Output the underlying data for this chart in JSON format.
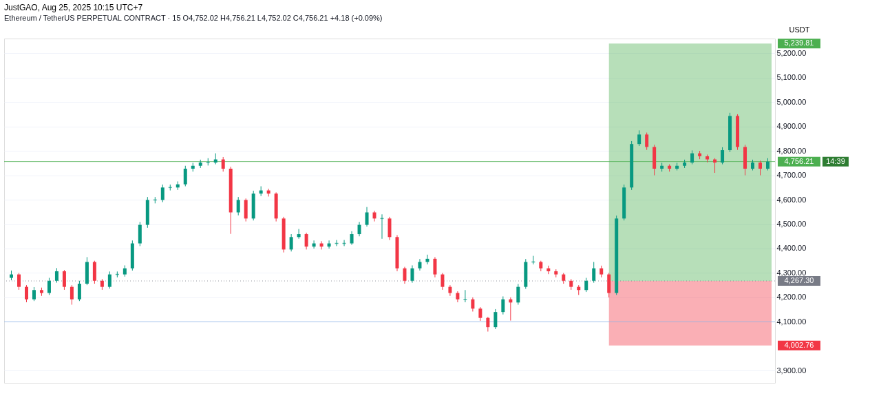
{
  "chart_data": {
    "type": "candlestick",
    "title": "JustGAO, Aug 25, 2025 10:15 UTC+7",
    "subtitle": "Ethereum / TetherUS PERPETUAL CONTRACT · 15  O4,752.02  H4,756.21  L4,752.02  C4,756.21  +4.18 (+0.09%)",
    "ylabel": "USDT",
    "categories": [
      null,
      null,
      null,
      null,
      null,
      null,
      null,
      null,
      null,
      null,
      null,
      null,
      null,
      null,
      null,
      null,
      null,
      null,
      null,
      null,
      null,
      null,
      null,
      null,
      null,
      null,
      null,
      null,
      null,
      null,
      null,
      null,
      null,
      null,
      null,
      null,
      null,
      null,
      null,
      null,
      null,
      null,
      null,
      null,
      null,
      null,
      null,
      null,
      null,
      null,
      null,
      null,
      null,
      null,
      null,
      null,
      null,
      null,
      null,
      null,
      null,
      null,
      null,
      null,
      null,
      null,
      null,
      null,
      null,
      null,
      null,
      null,
      null,
      null,
      null,
      null,
      null,
      null,
      null,
      null,
      null,
      null,
      null,
      null,
      null,
      null,
      null,
      null,
      null,
      null,
      null,
      null,
      null,
      null,
      null,
      null,
      null,
      null,
      null,
      null,
      null
    ],
    "ohlc": [
      [
        4280,
        4310,
        4270,
        4294
      ],
      [
        4294,
        4300,
        4231,
        4243
      ],
      [
        4243,
        4250,
        4180,
        4192
      ],
      [
        4192,
        4242,
        4185,
        4230
      ],
      [
        4230,
        4240,
        4206,
        4218
      ],
      [
        4218,
        4280,
        4210,
        4268
      ],
      [
        4268,
        4320,
        4260,
        4307
      ],
      [
        4307,
        4312,
        4231,
        4243
      ],
      [
        4243,
        4250,
        4170,
        4192
      ],
      [
        4192,
        4268,
        4185,
        4256
      ],
      [
        4256,
        4365,
        4250,
        4345
      ],
      [
        4345,
        4350,
        4256,
        4268
      ],
      [
        4268,
        4275,
        4231,
        4243
      ],
      [
        4243,
        4306,
        4236,
        4294
      ],
      [
        4294,
        4306,
        4282,
        4294
      ],
      [
        4294,
        4331,
        4285,
        4319
      ],
      [
        4319,
        4433,
        4310,
        4421
      ],
      [
        4421,
        4509,
        4410,
        4497
      ],
      [
        4497,
        4611,
        4485,
        4599
      ],
      [
        4599,
        4611,
        4585,
        4599
      ],
      [
        4599,
        4662,
        4590,
        4650
      ],
      [
        4650,
        4662,
        4638,
        4650
      ],
      [
        4650,
        4675,
        4640,
        4663
      ],
      [
        4663,
        4739,
        4655,
        4727
      ],
      [
        4727,
        4751,
        4715,
        4739
      ],
      [
        4739,
        4764,
        4730,
        4752
      ],
      [
        4752,
        4770,
        4740,
        4752
      ],
      [
        4752,
        4790,
        4745,
        4765
      ],
      [
        4765,
        4775,
        4715,
        4727
      ],
      [
        4727,
        4735,
        4460,
        4548
      ],
      [
        4548,
        4611,
        4536,
        4599
      ],
      [
        4599,
        4605,
        4511,
        4523
      ],
      [
        4523,
        4637,
        4515,
        4625
      ],
      [
        4625,
        4655,
        4615,
        4638
      ],
      [
        4638,
        4645,
        4613,
        4625
      ],
      [
        4625,
        4630,
        4511,
        4523
      ],
      [
        4523,
        4530,
        4384,
        4396
      ],
      [
        4396,
        4459,
        4388,
        4447
      ],
      [
        4447,
        4480,
        4440,
        4459
      ],
      [
        4459,
        4465,
        4396,
        4408
      ],
      [
        4408,
        4433,
        4400,
        4421
      ],
      [
        4421,
        4430,
        4396,
        4408
      ],
      [
        4408,
        4433,
        4400,
        4421
      ],
      [
        4421,
        4435,
        4410,
        4421
      ],
      [
        4421,
        4435,
        4410,
        4421
      ],
      [
        4421,
        4471,
        4415,
        4459
      ],
      [
        4459,
        4509,
        4450,
        4497
      ],
      [
        4497,
        4570,
        4490,
        4548
      ],
      [
        4548,
        4555,
        4511,
        4523
      ],
      [
        4523,
        4540,
        4440,
        4523
      ],
      [
        4523,
        4530,
        4435,
        4447
      ],
      [
        4447,
        4455,
        4307,
        4319
      ],
      [
        4319,
        4325,
        4256,
        4268
      ],
      [
        4268,
        4331,
        4260,
        4319
      ],
      [
        4319,
        4357,
        4310,
        4345
      ],
      [
        4345,
        4375,
        4335,
        4358
      ],
      [
        4358,
        4365,
        4282,
        4294
      ],
      [
        4294,
        4300,
        4231,
        4243
      ],
      [
        4243,
        4250,
        4206,
        4218
      ],
      [
        4218,
        4225,
        4180,
        4192
      ],
      [
        4192,
        4230,
        4180,
        4192
      ],
      [
        4192,
        4200,
        4142,
        4154
      ],
      [
        4154,
        4160,
        4104,
        4116
      ],
      [
        4116,
        4120,
        4060,
        4078
      ],
      [
        4078,
        4152,
        4070,
        4140
      ],
      [
        4140,
        4204,
        4130,
        4192
      ],
      [
        4192,
        4200,
        4105,
        4179
      ],
      [
        4179,
        4255,
        4170,
        4243
      ],
      [
        4243,
        4357,
        4235,
        4345
      ],
      [
        4345,
        4370,
        4335,
        4345
      ],
      [
        4345,
        4350,
        4307,
        4319
      ],
      [
        4319,
        4330,
        4295,
        4307
      ],
      [
        4307,
        4315,
        4282,
        4294
      ],
      [
        4294,
        4300,
        4256,
        4268
      ],
      [
        4268,
        4275,
        4231,
        4243
      ],
      [
        4243,
        4250,
        4210,
        4230
      ],
      [
        4230,
        4280,
        4222,
        4268
      ],
      [
        4268,
        4345,
        4260,
        4319
      ],
      [
        4319,
        4330,
        4282,
        4294
      ],
      [
        4294,
        4300,
        4200,
        4218
      ],
      [
        4218,
        4535,
        4210,
        4523
      ],
      [
        4523,
        4662,
        4515,
        4650
      ],
      [
        4650,
        4840,
        4640,
        4828
      ],
      [
        4828,
        4884,
        4820,
        4867
      ],
      [
        4867,
        4875,
        4804,
        4816
      ],
      [
        4816,
        4825,
        4700,
        4727
      ],
      [
        4727,
        4751,
        4715,
        4739
      ],
      [
        4739,
        4745,
        4715,
        4727
      ],
      [
        4727,
        4751,
        4720,
        4739
      ],
      [
        4739,
        4764,
        4730,
        4752
      ],
      [
        4752,
        4802,
        4745,
        4790
      ],
      [
        4790,
        4800,
        4766,
        4778
      ],
      [
        4778,
        4785,
        4753,
        4765
      ],
      [
        4765,
        4770,
        4710,
        4752
      ],
      [
        4752,
        4815,
        4745,
        4803
      ],
      [
        4803,
        4956,
        4795,
        4943
      ],
      [
        4943,
        4950,
        4804,
        4816
      ],
      [
        4816,
        4825,
        4700,
        4727
      ],
      [
        4727,
        4764,
        4720,
        4752
      ],
      [
        4752,
        4760,
        4700,
        4727
      ],
      [
        4727,
        4770,
        4720,
        4756.21
      ]
    ],
    "ylim": [
      3850,
      5260
    ],
    "yticks": [
      {
        "value": 3900,
        "label": "3,900.00"
      },
      {
        "value": 4100,
        "label": "4,100.00"
      },
      {
        "value": 4200,
        "label": "4,200.00"
      },
      {
        "value": 4300,
        "label": "4,300.00"
      },
      {
        "value": 4400,
        "label": "4,400.00"
      },
      {
        "value": 4500,
        "label": "4,500.00"
      },
      {
        "value": 4600,
        "label": "4,600.00"
      },
      {
        "value": 4700,
        "label": "4,700.00"
      },
      {
        "value": 4800,
        "label": "4,800.00"
      },
      {
        "value": 4900,
        "label": "4,900.00"
      },
      {
        "value": 5000,
        "label": "5,000.00"
      },
      {
        "value": 5100,
        "label": "5,100.00"
      },
      {
        "value": 5200,
        "label": "5,200.00"
      }
    ],
    "grid": "y",
    "bands": [
      {
        "axis": "y",
        "from": 5239.81,
        "to": 4267.3,
        "label": "5,239.81",
        "color": "#4caf50"
      },
      {
        "axis": "y",
        "from": 4002.76,
        "to": 4267.3,
        "label": "4,002.76",
        "color": "#f23645"
      }
    ],
    "ref_lines": [
      {
        "axis": "y",
        "value": 4100,
        "color": "#90b4e6"
      },
      {
        "axis": "y",
        "value": 4756.21,
        "label": "4,756.21",
        "color": "#4caf50"
      },
      {
        "axis": "y",
        "value": 4267.3,
        "label": "4,267.30",
        "color": "#787b86",
        "line_style": "dotted"
      }
    ],
    "annotations": [
      "14:39"
    ]
  }
}
